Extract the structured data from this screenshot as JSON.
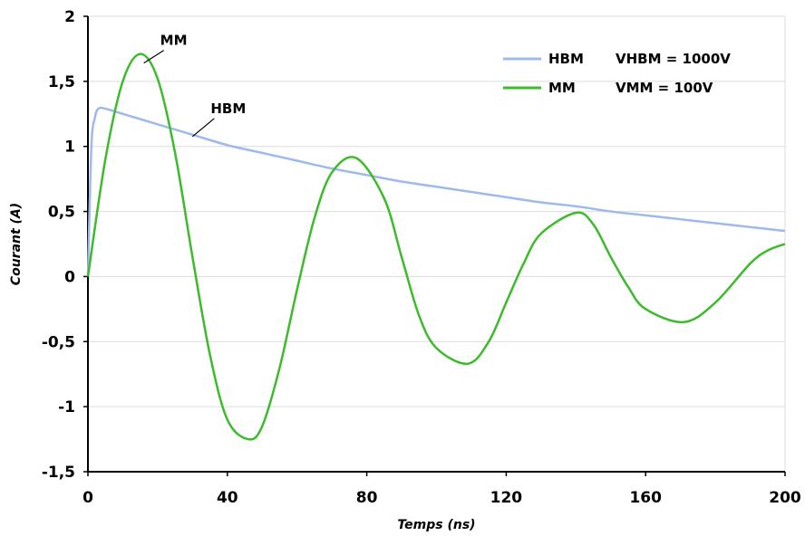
{
  "chart_data": {
    "type": "line",
    "title": "",
    "xlabel": "Temps (ns)",
    "ylabel": "Courant (A)",
    "xlim": [
      0,
      200
    ],
    "ylim": [
      -1.5,
      2
    ],
    "x_ticks": [
      0,
      40,
      80,
      120,
      160,
      200
    ],
    "x_tick_labels": [
      "0",
      "40",
      "80",
      "120",
      "160",
      "200"
    ],
    "y_ticks": [
      -1.5,
      -1,
      -0.5,
      0,
      0.5,
      1,
      1.5,
      2
    ],
    "y_tick_labels": [
      "-1,5",
      "-1",
      "-0,5",
      "0",
      "0,5",
      "1",
      "1,5",
      "2"
    ],
    "grid": "horizontal",
    "legend_position": "top-right",
    "series": [
      {
        "name": "HBM",
        "legend_note": "VHBM = 1000V",
        "color": "#9eb9ec",
        "x": [
          0,
          1,
          2,
          3,
          5,
          10,
          20,
          30,
          40,
          50,
          60,
          70,
          80,
          90,
          100,
          110,
          120,
          130,
          140,
          150,
          160,
          170,
          180,
          190,
          200
        ],
        "y": [
          0,
          1.0,
          1.22,
          1.29,
          1.29,
          1.25,
          1.17,
          1.09,
          1.01,
          0.95,
          0.89,
          0.83,
          0.78,
          0.73,
          0.69,
          0.65,
          0.61,
          0.57,
          0.54,
          0.5,
          0.47,
          0.44,
          0.41,
          0.38,
          0.35
        ]
      },
      {
        "name": "MM",
        "legend_note": "VMM = 100V",
        "color": "#3cbb2b",
        "x": [
          0,
          5,
          10,
          15,
          20,
          25,
          30,
          35,
          40,
          46,
          50,
          55,
          60,
          65,
          70,
          77,
          85,
          90,
          95,
          100,
          109,
          115,
          120,
          125,
          130,
          140,
          145,
          150,
          155,
          160,
          171,
          180,
          190,
          195,
          200
        ],
        "y": [
          0,
          0.9,
          1.5,
          1.71,
          1.52,
          0.95,
          0.15,
          -0.6,
          -1.1,
          -1.25,
          -1.15,
          -0.7,
          -0.1,
          0.45,
          0.8,
          0.91,
          0.6,
          0.15,
          -0.3,
          -0.55,
          -0.67,
          -0.5,
          -0.2,
          0.1,
          0.33,
          0.49,
          0.4,
          0.15,
          -0.08,
          -0.25,
          -0.35,
          -0.2,
          0.1,
          0.2,
          0.25
        ]
      }
    ],
    "annotations": [
      {
        "text": "MM",
        "series": "MM",
        "x": 15,
        "y": 1.71
      },
      {
        "text": "HBM",
        "series": "HBM",
        "x": 30,
        "y": 1.09
      }
    ]
  }
}
